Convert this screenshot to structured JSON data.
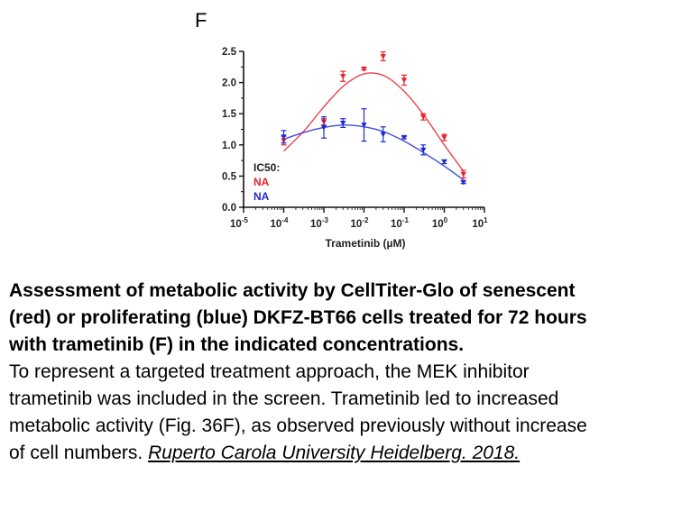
{
  "figure": {
    "panel_letter": "F"
  },
  "chart_data": {
    "type": "scatter",
    "title": "",
    "xlabel": "Trametinib (µM)",
    "ylabel": "",
    "x_scale": "log",
    "x_ticks": [
      {
        "base": "10",
        "exp": "-5",
        "value": 1e-05
      },
      {
        "base": "10",
        "exp": "-4",
        "value": 0.0001
      },
      {
        "base": "10",
        "exp": "-3",
        "value": 0.001
      },
      {
        "base": "10",
        "exp": "-2",
        "value": 0.01
      },
      {
        "base": "10",
        "exp": "-1",
        "value": 0.1
      },
      {
        "base": "10",
        "exp": "0",
        "value": 1
      },
      {
        "base": "10",
        "exp": "1",
        "value": 10
      }
    ],
    "y_ticks": [
      "0.0",
      "0.5",
      "1.0",
      "1.5",
      "2.0",
      "2.5"
    ],
    "xlim": [
      1e-05,
      10
    ],
    "ylim": [
      0,
      2.5
    ],
    "grid": false,
    "legend": {
      "title": "IC50:",
      "entries": [
        {
          "text": "NA",
          "color": "#e8212b"
        },
        {
          "text": "NA",
          "color": "#1f2bd1"
        }
      ]
    },
    "series": [
      {
        "color": "#e8212b",
        "marker": "triangle-down",
        "points": [
          {
            "x": 0.0001,
            "y": 1.07,
            "err": 0.07
          },
          {
            "x": 0.001,
            "y": 1.37,
            "err": 0.05
          },
          {
            "x": 0.003,
            "y": 2.1,
            "err": 0.08
          },
          {
            "x": 0.01,
            "y": 2.22,
            "err": 0.02
          },
          {
            "x": 0.03,
            "y": 2.42,
            "err": 0.07
          },
          {
            "x": 0.1,
            "y": 2.04,
            "err": 0.08
          },
          {
            "x": 0.3,
            "y": 1.45,
            "err": 0.05
          },
          {
            "x": 1,
            "y": 1.12,
            "err": 0.05
          },
          {
            "x": 3,
            "y": 0.53,
            "err": 0.06
          }
        ],
        "fit": [
          {
            "x": 0.0001,
            "y": 0.9
          },
          {
            "x": 0.000316,
            "y": 1.22
          },
          {
            "x": 0.001,
            "y": 1.61
          },
          {
            "x": 0.00316,
            "y": 1.95
          },
          {
            "x": 0.01,
            "y": 2.14
          },
          {
            "x": 0.0316,
            "y": 2.11
          },
          {
            "x": 0.1,
            "y": 1.86
          },
          {
            "x": 0.316,
            "y": 1.47
          },
          {
            "x": 1,
            "y": 1.0
          },
          {
            "x": 3,
            "y": 0.58
          }
        ]
      },
      {
        "color": "#1f2bd1",
        "marker": "triangle-down",
        "points": [
          {
            "x": 0.0001,
            "y": 1.13,
            "err": 0.1
          },
          {
            "x": 0.001,
            "y": 1.28,
            "err": 0.17
          },
          {
            "x": 0.003,
            "y": 1.35,
            "err": 0.07
          },
          {
            "x": 0.01,
            "y": 1.32,
            "err": 0.26
          },
          {
            "x": 0.03,
            "y": 1.17,
            "err": 0.12
          },
          {
            "x": 0.1,
            "y": 1.12,
            "err": 0.02
          },
          {
            "x": 0.3,
            "y": 0.92,
            "err": 0.08
          },
          {
            "x": 1,
            "y": 0.73,
            "err": 0.03
          },
          {
            "x": 3,
            "y": 0.4,
            "err": 0.02
          }
        ],
        "fit": [
          {
            "x": 0.0001,
            "y": 1.09
          },
          {
            "x": 0.000316,
            "y": 1.2
          },
          {
            "x": 0.001,
            "y": 1.28
          },
          {
            "x": 0.00316,
            "y": 1.32
          },
          {
            "x": 0.01,
            "y": 1.29
          },
          {
            "x": 0.0316,
            "y": 1.21
          },
          {
            "x": 0.1,
            "y": 1.06
          },
          {
            "x": 0.316,
            "y": 0.87
          },
          {
            "x": 1,
            "y": 0.66
          },
          {
            "x": 3,
            "y": 0.44
          }
        ]
      }
    ]
  },
  "caption": {
    "bold_lines": [
      "Assessment of metabolic activity by CellTiter-Glo of senescent",
      "(red) or proliferating (blue) DKFZ-BT66 cells treated for 72 hours",
      "with trametinib (F) in the indicated concentrations."
    ],
    "body_lines": [
      "To represent a targeted treatment approach, the MEK inhibitor",
      "trametinib was included in the screen. Trametinib led to increased",
      "metabolic activity (Fig. 36F), as observed previously without increase"
    ],
    "last_line_prefix": "of cell numbers. ",
    "citation": "Ruperto Carola University Heidelberg. 2018."
  }
}
